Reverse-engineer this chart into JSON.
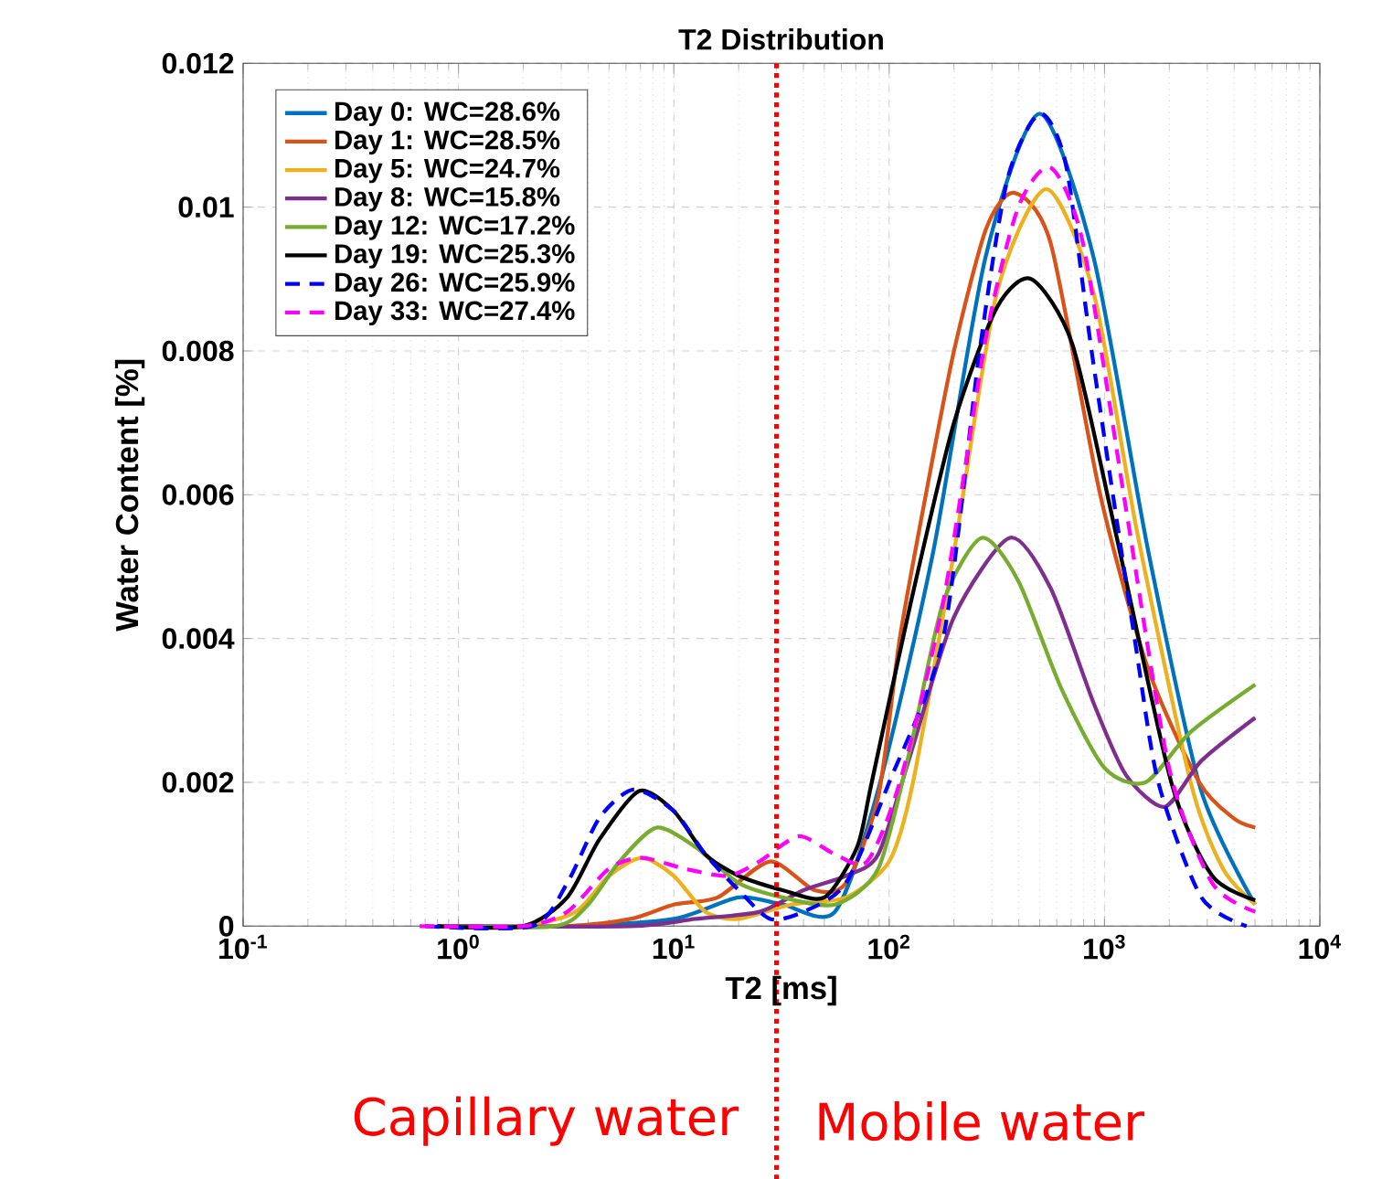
{
  "chart_data": {
    "type": "line",
    "title": "T2 Distribution",
    "xlabel": "T2 [ms]",
    "ylabel": "Water Content [%]",
    "log": "x",
    "xlim": [
      0.1,
      10000
    ],
    "xticks": [
      {
        "value": 0.1,
        "label": "10$^{-1}$"
      },
      {
        "value": 1,
        "label": "10$^{0}$"
      },
      {
        "value": 10,
        "label": "10$^{1}$"
      },
      {
        "value": 100,
        "label": "10$^{2}$"
      },
      {
        "value": 1000,
        "label": "10$^{3}$"
      },
      {
        "value": 10000,
        "label": "10$^{4}$"
      }
    ],
    "ylim": [
      0,
      0.012
    ],
    "yticks": [
      0,
      0.002,
      0.004,
      0.006,
      0.008,
      0.01,
      0.012
    ],
    "grid": true,
    "legend": "top left",
    "ref_lines": [
      {
        "axis": "x",
        "value": 30,
        "color": "#ff0000",
        "line_style": "dotted"
      }
    ],
    "annotations": [
      "Capillary water",
      "Mobile water"
    ],
    "series": [
      {
        "name": "Day 0: WC=28.6%",
        "color": "#0072bd",
        "line_style": "solid",
        "x": [
          0.8,
          3.2,
          10,
          20,
          32,
          56,
          89,
          160,
          280,
          500,
          890,
          1600,
          2800,
          5000
        ],
        "values": [
          0,
          0,
          0.0001,
          0.0004,
          0.0003,
          0.0002,
          0.0019,
          0.0052,
          0.0093,
          0.0113,
          0.0093,
          0.0052,
          0.0019,
          0.0003
        ]
      },
      {
        "name": "Day 1: WC=28.5%",
        "color": "#d95319",
        "line_style": "solid",
        "x": [
          0.8,
          3.2,
          6.3,
          10,
          16,
          28,
          45,
          63,
          89,
          112,
          148,
          200,
          282,
          380,
          562,
          955,
          1585,
          2754,
          3981,
          5012
        ],
        "values": [
          0,
          0,
          0.0001,
          0.0003,
          0.0004,
          0.0009,
          0.0005,
          0.0006,
          0.0018,
          0.004,
          0.006,
          0.008,
          0.0097,
          0.0102,
          0.0095,
          0.006,
          0.0036,
          0.002,
          0.0015,
          0.00137
        ]
      },
      {
        "name": "Day 5: WC=24.7%",
        "color": "#edb120",
        "line_style": "solid",
        "x": [
          0.8,
          2,
          3.5,
          5,
          7.1,
          10,
          14,
          20,
          35,
          63,
          100,
          129,
          200,
          316,
          537,
          891,
          1413,
          2512,
          3548,
          5012
        ],
        "values": [
          0,
          0,
          0.0002,
          0.0007,
          0.00095,
          0.0007,
          0.0002,
          0.0001,
          0.0003,
          0.0004,
          0.0009,
          0.002,
          0.0052,
          0.0088,
          0.01025,
          0.0088,
          0.0055,
          0.002,
          0.0008,
          0.0003
        ]
      },
      {
        "name": "Day 8: WC=15.8%",
        "color": "#7e2f8e",
        "line_style": "solid",
        "x": [
          0.8,
          6.3,
          12.6,
          25,
          40,
          63,
          89,
          126,
          200,
          363,
          562,
          891,
          1259,
          1905,
          2818,
          5012
        ],
        "values": [
          0,
          0,
          0.0001,
          0.0002,
          0.0005,
          0.0007,
          0.001,
          0.0024,
          0.0043,
          0.0054,
          0.0047,
          0.0031,
          0.0021,
          0.00166,
          0.0023,
          0.0029
        ]
      },
      {
        "name": "Day 12: WC=17.2%",
        "color": "#77ac30",
        "line_style": "solid",
        "x": [
          0.8,
          2.8,
          4,
          5.6,
          8.3,
          12.6,
          20,
          32,
          56,
          89,
          126,
          178,
          269,
          398,
          631,
          1000,
          1549,
          2512,
          5012
        ],
        "values": [
          0,
          0,
          0.0003,
          0.0009,
          0.00137,
          0.0011,
          0.0006,
          0.0004,
          0.0003,
          0.0008,
          0.0025,
          0.0045,
          0.0054,
          0.0048,
          0.0033,
          0.0022,
          0.002,
          0.0027,
          0.00336
        ]
      },
      {
        "name": "Day 19: WC=25.3%",
        "color": "#000000",
        "line_style": "solid",
        "x": [
          0.8,
          2,
          3.2,
          4.5,
          6.9,
          10,
          14,
          20,
          32,
          50,
          71,
          83,
          126,
          200,
          316,
          457,
          708,
          1122,
          2042,
          3162,
          5012
        ],
        "values": [
          0,
          0,
          0.0004,
          0.0012,
          0.00188,
          0.0016,
          0.001,
          0.0007,
          0.0005,
          0.0004,
          0.0011,
          0.002,
          0.0045,
          0.007,
          0.0086,
          0.009,
          0.0081,
          0.0055,
          0.002,
          0.0007,
          0.00036
        ]
      },
      {
        "name": "Day 26: WC=25.9%",
        "color": "#0000ff",
        "line_style": "dashed",
        "x": [
          0.7,
          2.2,
          3.2,
          4.5,
          6.5,
          10,
          14,
          20,
          28,
          40,
          63,
          100,
          178,
          263,
          355,
          501,
          661,
          871,
          1380,
          1778,
          2818,
          4571
        ],
        "values": [
          0,
          0,
          0.0006,
          0.0015,
          0.0019,
          0.0016,
          0.001,
          0.0005,
          0.0001,
          0.0002,
          0.0006,
          0.002,
          0.004,
          0.008,
          0.0104,
          0.0113,
          0.0106,
          0.008,
          0.004,
          0.002,
          0.0004,
          0
        ]
      },
      {
        "name": "Day 33: WC=27.4%",
        "color": "#ff00ff",
        "line_style": "dashed",
        "x": [
          0.66,
          2,
          3.2,
          5,
          7.1,
          11.2,
          17.8,
          25,
          38,
          56,
          79,
          112,
          178,
          282,
          398,
          562,
          794,
          1259,
          1995,
          3162,
          5012
        ],
        "values": [
          0,
          0,
          0.0002,
          0.0008,
          0.00095,
          0.0008,
          0.0007,
          0.0009,
          0.00125,
          0.001,
          0.0009,
          0.002,
          0.0045,
          0.0082,
          0.01,
          0.01055,
          0.0095,
          0.0058,
          0.0022,
          0.0006,
          0.0002
        ]
      }
    ]
  }
}
